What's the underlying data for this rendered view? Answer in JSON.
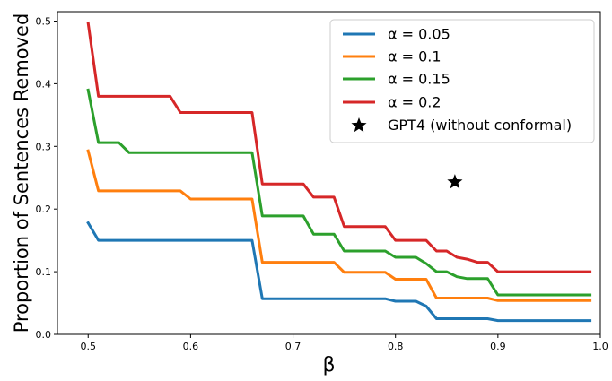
{
  "chart_data": {
    "type": "line",
    "title": "",
    "xlabel": "β",
    "ylabel": "Proportion of Sentences Removed",
    "xlim": [
      0.47,
      1.0
    ],
    "ylim": [
      0,
      0.515
    ],
    "xticks": [
      0.5,
      0.6,
      0.7,
      0.8,
      0.9,
      1.0
    ],
    "xtick_labels": [
      "0.5",
      "0.6",
      "0.7",
      "0.8",
      "0.9",
      "1.0"
    ],
    "yticks": [
      0.0,
      0.1,
      0.2,
      0.3,
      0.4,
      0.5
    ],
    "ytick_labels": [
      "0.0",
      "0.1",
      "0.2",
      "0.3",
      "0.4",
      "0.5"
    ],
    "grid": false,
    "legend_position": "top-right",
    "series": [
      {
        "name": "α = 0.05",
        "color": "#1f77b4",
        "x": [
          0.5,
          0.51,
          0.66,
          0.67,
          0.79,
          0.8,
          0.82,
          0.83,
          0.84,
          0.89,
          0.9,
          0.99
        ],
        "y": [
          0.178,
          0.15,
          0.15,
          0.057,
          0.057,
          0.053,
          0.053,
          0.045,
          0.025,
          0.025,
          0.022,
          0.022
        ]
      },
      {
        "name": "α = 0.1",
        "color": "#ff7f0e",
        "x": [
          0.5,
          0.51,
          0.59,
          0.6,
          0.66,
          0.67,
          0.74,
          0.75,
          0.79,
          0.8,
          0.83,
          0.84,
          0.89,
          0.9,
          0.99
        ],
        "y": [
          0.293,
          0.229,
          0.229,
          0.216,
          0.216,
          0.115,
          0.115,
          0.099,
          0.099,
          0.088,
          0.088,
          0.058,
          0.058,
          0.054,
          0.054
        ]
      },
      {
        "name": "α = 0.15",
        "color": "#2ca02c",
        "x": [
          0.5,
          0.51,
          0.53,
          0.54,
          0.66,
          0.67,
          0.71,
          0.72,
          0.74,
          0.75,
          0.79,
          0.8,
          0.82,
          0.83,
          0.84,
          0.85,
          0.86,
          0.87,
          0.89,
          0.9,
          0.99
        ],
        "y": [
          0.39,
          0.306,
          0.306,
          0.29,
          0.29,
          0.189,
          0.189,
          0.16,
          0.16,
          0.133,
          0.133,
          0.123,
          0.123,
          0.113,
          0.1,
          0.1,
          0.092,
          0.089,
          0.089,
          0.063,
          0.063
        ]
      },
      {
        "name": "α = 0.2",
        "color": "#d62728",
        "x": [
          0.5,
          0.51,
          0.58,
          0.59,
          0.66,
          0.67,
          0.71,
          0.72,
          0.74,
          0.75,
          0.79,
          0.8,
          0.83,
          0.84,
          0.85,
          0.86,
          0.87,
          0.88,
          0.89,
          0.9,
          0.99
        ],
        "y": [
          0.497,
          0.38,
          0.38,
          0.354,
          0.354,
          0.24,
          0.24,
          0.219,
          0.219,
          0.172,
          0.172,
          0.15,
          0.15,
          0.133,
          0.133,
          0.123,
          0.12,
          0.115,
          0.115,
          0.1,
          0.1
        ]
      }
    ],
    "markers": [
      {
        "name": "GPT4 (without conformal)",
        "x": 0.858,
        "y": 0.243,
        "marker": "star",
        "color": "#000000"
      }
    ]
  }
}
